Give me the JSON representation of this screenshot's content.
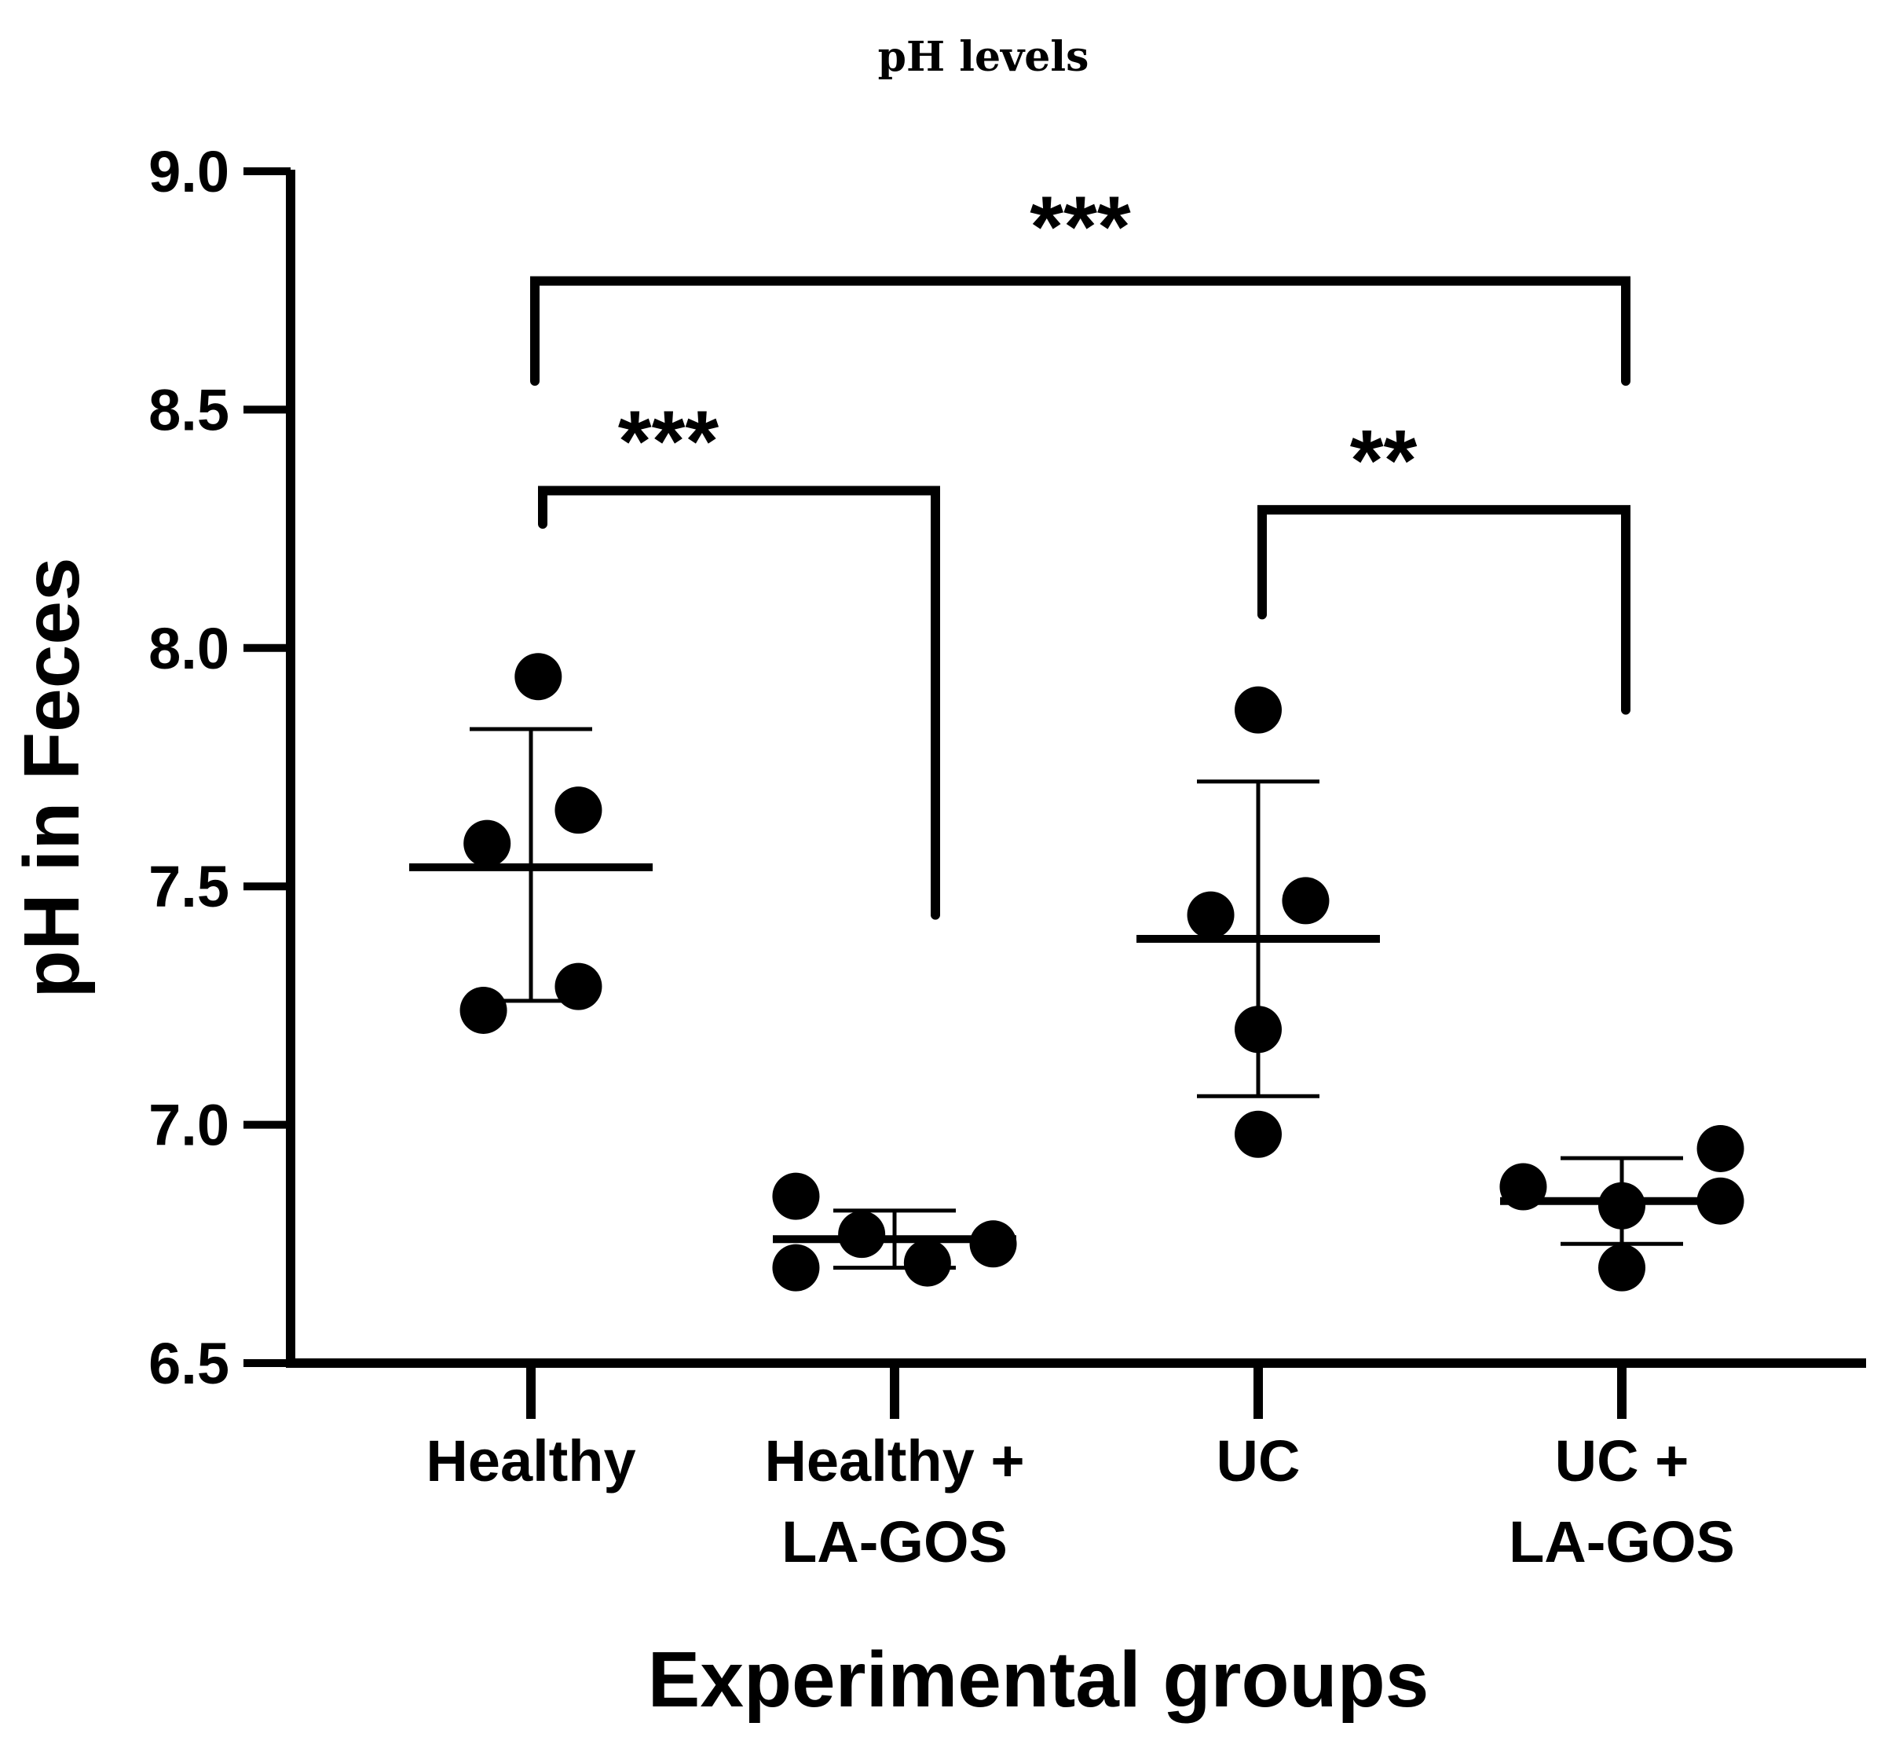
{
  "chart_data": {
    "type": "scatter",
    "title": "pH levels",
    "xlabel": "Experimental groups",
    "ylabel": "pH in Feces",
    "ylim": [
      6.5,
      9.0
    ],
    "yticks": [
      "6.5",
      "7.0",
      "7.5",
      "8.0",
      "8.5",
      "9.0"
    ],
    "categories": [
      {
        "line1": "Healthy",
        "line2": ""
      },
      {
        "line1": "Healthy +",
        "line2": "LA-GOS"
      },
      {
        "line1": "UC",
        "line2": ""
      },
      {
        "line1": "UC +",
        "line2": "LA-GOS"
      }
    ],
    "groups": [
      {
        "name": "Healthy",
        "mean": 7.54,
        "sd_low": 7.26,
        "sd_high": 7.83,
        "points": [
          {
            "offset": 0.02,
            "y": 7.94
          },
          {
            "offset": 0.13,
            "y": 7.66
          },
          {
            "offset": -0.12,
            "y": 7.59
          },
          {
            "offset": 0.13,
            "y": 7.29
          },
          {
            "offset": -0.13,
            "y": 7.24
          }
        ]
      },
      {
        "name": "Healthy + LA-GOS",
        "mean": 6.76,
        "sd_low": 6.7,
        "sd_high": 6.82,
        "points": [
          {
            "offset": -0.27,
            "y": 6.85
          },
          {
            "offset": -0.09,
            "y": 6.77
          },
          {
            "offset": 0.27,
            "y": 6.75
          },
          {
            "offset": -0.27,
            "y": 6.7
          },
          {
            "offset": 0.09,
            "y": 6.71
          }
        ]
      },
      {
        "name": "UC",
        "mean": 7.39,
        "sd_low": 7.06,
        "sd_high": 7.72,
        "points": [
          {
            "offset": 0.0,
            "y": 7.87
          },
          {
            "offset": 0.13,
            "y": 7.47
          },
          {
            "offset": -0.13,
            "y": 7.44
          },
          {
            "offset": 0.0,
            "y": 7.2
          },
          {
            "offset": 0.0,
            "y": 6.98
          }
        ]
      },
      {
        "name": "UC + LA-GOS",
        "mean": 6.84,
        "sd_low": 6.75,
        "sd_high": 6.93,
        "points": [
          {
            "offset": 0.27,
            "y": 6.95
          },
          {
            "offset": -0.27,
            "y": 6.87
          },
          {
            "offset": 0.0,
            "y": 6.83
          },
          {
            "offset": 0.27,
            "y": 6.84
          },
          {
            "offset": 0.0,
            "y": 6.7
          }
        ]
      }
    ],
    "comparisons": [
      {
        "from": 0,
        "to": 3,
        "label": "***",
        "bar_y": 8.77,
        "left_y": 8.56,
        "right_y": 8.56,
        "label_y": 8.92
      },
      {
        "from": 0,
        "to": 1,
        "label": "***",
        "bar_y": 8.33,
        "left_y": 8.26,
        "right_y": 7.44,
        "label_y": 8.47
      },
      {
        "from": 2,
        "to": 3,
        "label": "**",
        "bar_y": 8.29,
        "left_y": 8.07,
        "right_y": 7.87,
        "label_y": 8.43
      }
    ]
  }
}
